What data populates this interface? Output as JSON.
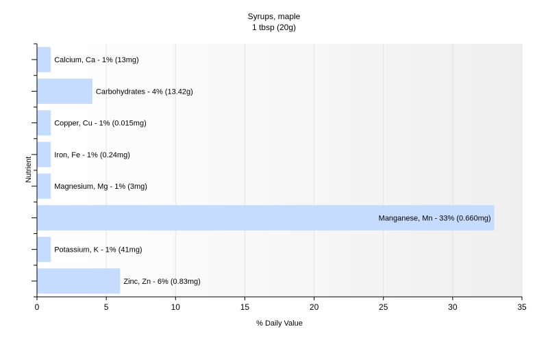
{
  "chart_data": {
    "type": "bar",
    "orientation": "horizontal",
    "title": "Syrups, maple",
    "subtitle": "1 tbsp (20g)",
    "xlabel": "% Daily Value",
    "ylabel": "Nutrient",
    "xlim": [
      0,
      35
    ],
    "xticks": [
      0,
      5,
      10,
      15,
      20,
      25,
      30,
      35
    ],
    "xtick_labels": [
      "0",
      "5",
      "10",
      "15",
      "20",
      "25",
      "30",
      "35"
    ],
    "grid": "vertical",
    "categories": [
      "Calcium, Ca",
      "Carbohydrates",
      "Copper, Cu",
      "Iron, Fe",
      "Magnesium, Mg",
      "Manganese, Mn",
      "Potassium, K",
      "Zinc, Zn"
    ],
    "values": [
      1,
      4,
      1,
      1,
      1,
      33,
      1,
      6
    ],
    "labels": [
      "Calcium, Ca - 1% (13mg)",
      "Carbohydrates - 4% (13.42g)",
      "Copper, Cu - 1% (0.015mg)",
      "Iron, Fe - 1% (0.24mg)",
      "Magnesium, Mg - 1% (3mg)",
      "Manganese, Mn - 33% (0.660mg)",
      "Potassium, K - 1% (41mg)",
      "Zinc, Zn - 6% (0.83mg)"
    ],
    "colors": {
      "bar": "#c6dcff",
      "gradient_start": "#ffffff",
      "gradient_end": "#efefef",
      "grid": "#e2e2e2",
      "axis": "#000000"
    }
  }
}
